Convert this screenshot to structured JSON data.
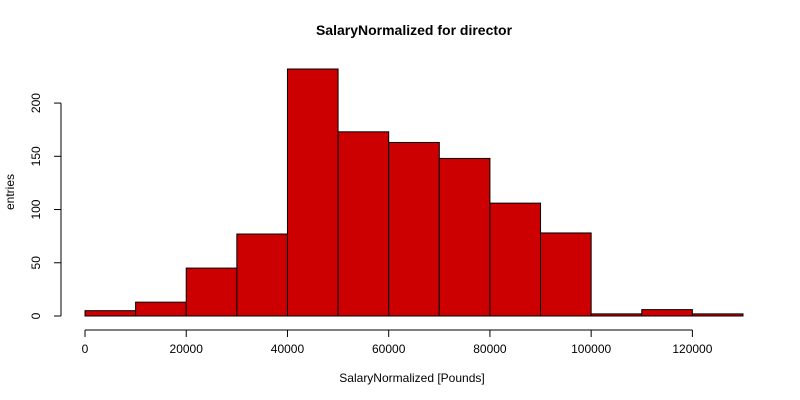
{
  "chart_data": {
    "type": "bar",
    "title": "SalaryNormalized for director",
    "xlabel": "SalaryNormalized [Pounds]",
    "ylabel": "entries",
    "bin_edges": [
      0,
      10000,
      20000,
      30000,
      40000,
      50000,
      60000,
      70000,
      80000,
      90000,
      100000,
      110000,
      120000,
      130000
    ],
    "values": [
      5,
      13,
      45,
      77,
      232,
      173,
      163,
      148,
      106,
      78,
      2,
      6,
      2
    ],
    "xlim": [
      0,
      130000
    ],
    "ylim": [
      0,
      232
    ],
    "x_ticks": [
      0,
      20000,
      40000,
      60000,
      80000,
      100000,
      120000
    ],
    "y_ticks": [
      0,
      50,
      100,
      150,
      200
    ],
    "bar_color": "#cc0000",
    "grid": false,
    "legend": "none"
  }
}
